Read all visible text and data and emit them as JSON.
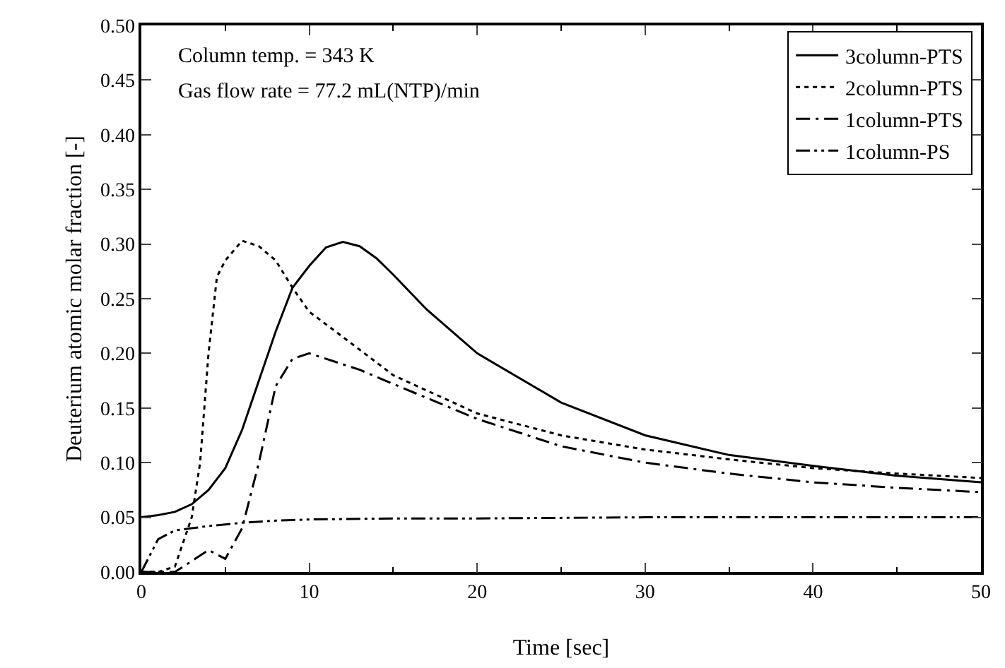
{
  "chart_data": {
    "type": "line",
    "xlabel": "Time [sec]",
    "ylabel": "Deuterium atomic molar fraction [-]",
    "annotations": [
      "Column temp. = 343 K",
      "Gas flow rate = 77.2 mL(NTP)/min"
    ],
    "xlim": [
      0,
      50
    ],
    "xticks": [
      0,
      10,
      20,
      30,
      40,
      50
    ],
    "ylim": [
      0,
      0.5
    ],
    "yticks": [
      {
        "value": 0,
        "label": "0.00"
      },
      {
        "value": 0.05,
        "label": "0.05"
      },
      {
        "value": 0.1,
        "label": "0.10"
      },
      {
        "value": 0.15,
        "label": "0.15"
      },
      {
        "value": 0.2,
        "label": "0.20"
      },
      {
        "value": 0.25,
        "label": "0.25"
      },
      {
        "value": 0.3,
        "label": "0.30"
      },
      {
        "value": 0.35,
        "label": "0.35"
      },
      {
        "value": 0.4,
        "label": "0.40"
      },
      {
        "value": 0.45,
        "label": "0.45"
      },
      {
        "value": 0.5,
        "label": "0.50"
      }
    ],
    "grid": false,
    "legend": "top right",
    "marker": "none",
    "series": [
      {
        "name": "3column-PTS",
        "color": "#000000",
        "line_style": "solid",
        "x": [
          0,
          1,
          2,
          3,
          4,
          5,
          6,
          7,
          8,
          9,
          10,
          11,
          12,
          13,
          14,
          15,
          17,
          20,
          25,
          30,
          35,
          40,
          45,
          50
        ],
        "values": [
          0.05,
          0.052,
          0.055,
          0.062,
          0.075,
          0.095,
          0.13,
          0.175,
          0.22,
          0.26,
          0.28,
          0.297,
          0.302,
          0.298,
          0.287,
          0.272,
          0.24,
          0.2,
          0.155,
          0.125,
          0.107,
          0.097,
          0.088,
          0.082
        ]
      },
      {
        "name": "2column-PTS",
        "color": "#000000",
        "line_style": "dotted",
        "x": [
          0,
          1,
          2,
          3,
          3.5,
          4,
          4.5,
          5,
          6,
          7,
          8,
          9,
          10,
          12,
          15,
          20,
          25,
          30,
          35,
          40,
          45,
          50
        ],
        "values": [
          0,
          0,
          0.005,
          0.05,
          0.1,
          0.2,
          0.27,
          0.285,
          0.303,
          0.298,
          0.285,
          0.26,
          0.238,
          0.215,
          0.18,
          0.145,
          0.125,
          0.112,
          0.103,
          0.095,
          0.09,
          0.086
        ]
      },
      {
        "name": "1column-PTS",
        "color": "#000000",
        "line_style": "dashdot",
        "x": [
          0,
          1.5,
          2,
          3,
          4,
          5,
          6,
          7,
          8,
          9,
          10,
          11,
          13,
          15,
          20,
          25,
          30,
          35,
          40,
          45,
          50
        ],
        "values": [
          0,
          0,
          0,
          0.01,
          0.02,
          0.012,
          0.04,
          0.1,
          0.17,
          0.195,
          0.2,
          0.195,
          0.185,
          0.172,
          0.14,
          0.115,
          0.1,
          0.09,
          0.082,
          0.077,
          0.073
        ]
      },
      {
        "name": "1column-PS",
        "color": "#000000",
        "line_style": "dashdotdot",
        "x": [
          0,
          0.5,
          1,
          2,
          3,
          4,
          6,
          8,
          10,
          15,
          20,
          30,
          40,
          50
        ],
        "values": [
          0,
          0.015,
          0.03,
          0.038,
          0.04,
          0.042,
          0.045,
          0.047,
          0.048,
          0.049,
          0.049,
          0.05,
          0.05,
          0.05
        ]
      }
    ]
  }
}
